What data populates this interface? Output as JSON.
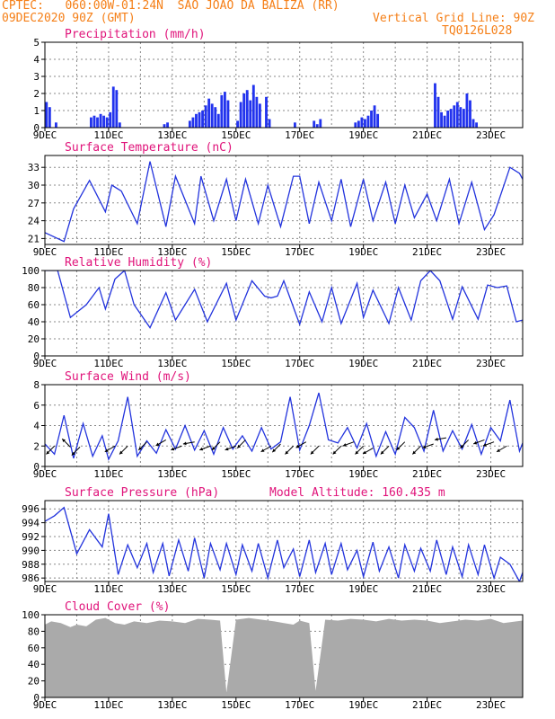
{
  "header": {
    "line1_left": "CPTEC:   060:00W-01:24N  SAO JOAO DA BALIZA (RR)",
    "line2_left": "09DEC2020 90Z (GMT)",
    "line2_right": "Vertical Grid Line: 90Z",
    "line3_right": "TQ0126L028"
  },
  "colors": {
    "header_text": "#f57f17",
    "panel_title": "#e0137a",
    "series_line": "#2233dd",
    "precip_bar": "#2233ee",
    "cloud_fill": "#aaaaaa",
    "grid": "#888888"
  },
  "x_axis": {
    "start_day": 9,
    "end_day": 24,
    "tick_labels": [
      "9DEC",
      "11DEC",
      "13DEC",
      "15DEC",
      "17DEC",
      "19DEC",
      "21DEC",
      "23DEC"
    ]
  },
  "chart_data": [
    {
      "type": "bar",
      "title": "Precipitation (mm/h)",
      "ylim": [
        0,
        5
      ],
      "yticks": [
        0,
        1,
        2,
        3,
        4,
        5
      ],
      "grid": true,
      "x_day": [
        9.05,
        9.15,
        9.35,
        10.45,
        10.55,
        10.65,
        10.75,
        10.85,
        10.95,
        11.05,
        11.15,
        11.25,
        11.35,
        12.75,
        12.85,
        13.55,
        13.65,
        13.75,
        13.85,
        13.95,
        14.05,
        14.15,
        14.25,
        14.35,
        14.45,
        14.55,
        14.65,
        14.75,
        15.05,
        15.15,
        15.25,
        15.35,
        15.45,
        15.55,
        15.65,
        15.75,
        15.95,
        16.05,
        16.85,
        17.45,
        17.55,
        17.65,
        18.75,
        18.85,
        18.95,
        19.05,
        19.15,
        19.25,
        19.35,
        19.45,
        21.25,
        21.35,
        21.45,
        21.55,
        21.65,
        21.75,
        21.85,
        21.95,
        22.05,
        22.15,
        22.25,
        22.35,
        22.45,
        22.55
      ],
      "values": [
        1.5,
        1.2,
        0.3,
        0.6,
        0.7,
        0.6,
        0.8,
        0.7,
        0.6,
        0.9,
        2.4,
        2.2,
        0.3,
        0.2,
        0.3,
        0.4,
        0.6,
        0.8,
        0.9,
        1.0,
        1.3,
        1.7,
        1.4,
        1.2,
        0.8,
        1.9,
        2.1,
        1.6,
        0.4,
        1.5,
        2.0,
        2.2,
        1.6,
        2.5,
        1.8,
        1.4,
        1.8,
        0.5,
        0.3,
        0.4,
        0.2,
        0.5,
        0.3,
        0.4,
        0.6,
        0.5,
        0.7,
        1.0,
        1.3,
        0.8,
        2.6,
        1.8,
        0.9,
        0.7,
        1.0,
        1.1,
        1.3,
        1.5,
        1.2,
        1.1,
        2.0,
        1.6,
        0.5,
        0.3
      ]
    },
    {
      "type": "line",
      "title": "Surface Temperature (nC)",
      "ylim": [
        20,
        35
      ],
      "yticks": [
        21,
        24,
        27,
        30,
        33
      ],
      "grid": true,
      "x_day": [
        9.0,
        9.6,
        9.9,
        10.4,
        10.9,
        11.1,
        11.4,
        11.9,
        12.3,
        12.8,
        13.1,
        13.7,
        13.9,
        14.3,
        14.7,
        15.0,
        15.3,
        15.7,
        16.0,
        16.4,
        16.8,
        17.0,
        17.3,
        17.6,
        18.0,
        18.3,
        18.6,
        19.0,
        19.3,
        19.7,
        20.0,
        20.3,
        20.6,
        21.0,
        21.3,
        21.7,
        22.0,
        22.4,
        22.8,
        23.1,
        23.6,
        23.9,
        24.0
      ],
      "values": [
        22.0,
        20.5,
        26.0,
        30.8,
        25.5,
        30.0,
        29.0,
        23.5,
        34.0,
        23.0,
        31.5,
        23.5,
        31.5,
        24.0,
        31.0,
        24.0,
        31.0,
        23.5,
        30.0,
        23.0,
        31.5,
        31.5,
        23.5,
        30.5,
        24.0,
        31.0,
        23.0,
        31.0,
        24.0,
        30.5,
        23.5,
        30.0,
        24.5,
        28.5,
        24.0,
        31.0,
        23.5,
        30.5,
        22.5,
        25.0,
        33.0,
        32.0,
        31.0
      ]
    },
    {
      "type": "line",
      "title": "Relative Humidity (%)",
      "ylim": [
        0,
        100
      ],
      "yticks": [
        0,
        20,
        40,
        60,
        80,
        100
      ],
      "grid": true,
      "x_day": [
        9.0,
        9.4,
        9.8,
        10.3,
        10.7,
        10.9,
        11.2,
        11.5,
        11.8,
        12.3,
        12.8,
        13.1,
        13.7,
        14.1,
        14.7,
        15.0,
        15.5,
        15.9,
        16.1,
        16.3,
        16.5,
        16.9,
        17.0,
        17.3,
        17.7,
        18.0,
        18.3,
        18.8,
        19.0,
        19.3,
        19.8,
        20.1,
        20.5,
        20.8,
        21.1,
        21.4,
        21.8,
        22.1,
        22.6,
        22.9,
        23.2,
        23.5,
        23.8,
        24.0
      ],
      "values": [
        100,
        100,
        45,
        60,
        80,
        55,
        90,
        100,
        60,
        33,
        74,
        42,
        78,
        40,
        85,
        42,
        88,
        70,
        68,
        70,
        88,
        47,
        37,
        75,
        40,
        80,
        38,
        85,
        45,
        77,
        38,
        80,
        42,
        88,
        100,
        88,
        43,
        81,
        43,
        83,
        80,
        82,
        40,
        42
      ]
    },
    {
      "type": "line",
      "title": "Surface Wind (m/s)",
      "ylim": [
        0,
        8
      ],
      "yticks": [
        0,
        2,
        4,
        6,
        8
      ],
      "grid": true,
      "x_day": [
        9.0,
        9.3,
        9.6,
        9.9,
        10.2,
        10.5,
        10.8,
        11.0,
        11.3,
        11.6,
        11.9,
        12.2,
        12.5,
        12.8,
        13.1,
        13.4,
        13.7,
        14.0,
        14.3,
        14.6,
        14.9,
        15.2,
        15.5,
        15.8,
        16.1,
        16.4,
        16.7,
        17.0,
        17.3,
        17.6,
        17.9,
        18.2,
        18.5,
        18.8,
        19.1,
        19.4,
        19.7,
        20.0,
        20.3,
        20.6,
        20.9,
        21.2,
        21.5,
        21.8,
        22.1,
        22.4,
        22.7,
        23.0,
        23.3,
        23.6,
        23.9,
        24.0
      ],
      "values": [
        2.2,
        1.2,
        5.0,
        0.8,
        4.2,
        1.0,
        3.0,
        0.7,
        2.5,
        6.8,
        1.0,
        2.5,
        1.3,
        3.6,
        1.7,
        4.0,
        1.6,
        3.5,
        1.2,
        3.8,
        1.7,
        3.0,
        1.5,
        3.8,
        1.7,
        2.4,
        6.8,
        1.6,
        4.0,
        7.2,
        2.6,
        2.3,
        3.8,
        1.8,
        4.2,
        1.0,
        3.4,
        1.2,
        4.8,
        3.8,
        1.5,
        5.5,
        1.5,
        3.5,
        1.7,
        4.1,
        1.2,
        3.8,
        2.5,
        6.5,
        1.5,
        2.3
      ],
      "arrows": [
        [
          9.3,
          225,
          2.0
        ],
        [
          9.8,
          135,
          1.9
        ],
        [
          10.1,
          225,
          1.9
        ],
        [
          11.2,
          210,
          2.0
        ],
        [
          11.6,
          225,
          2.0
        ],
        [
          12.2,
          225,
          2.4
        ],
        [
          12.8,
          210,
          2.6
        ],
        [
          13.3,
          200,
          2.0
        ],
        [
          13.7,
          190,
          2.4
        ],
        [
          14.2,
          200,
          2.0
        ],
        [
          14.5,
          225,
          2.4
        ],
        [
          15.0,
          200,
          2.0
        ],
        [
          15.3,
          225,
          2.6
        ],
        [
          16.1,
          210,
          2.0
        ],
        [
          16.4,
          225,
          2.2
        ],
        [
          16.8,
          225,
          2.0
        ],
        [
          17.2,
          210,
          2.4
        ],
        [
          17.6,
          225,
          2.0
        ],
        [
          18.3,
          225,
          2.0
        ],
        [
          18.7,
          200,
          2.4
        ],
        [
          19.0,
          225,
          2.0
        ],
        [
          19.3,
          210,
          1.8
        ],
        [
          19.8,
          225,
          2.0
        ],
        [
          20.3,
          225,
          2.4
        ],
        [
          20.8,
          225,
          2.0
        ],
        [
          21.2,
          200,
          2.2
        ],
        [
          21.6,
          190,
          2.8
        ],
        [
          22.3,
          225,
          2.6
        ],
        [
          22.8,
          200,
          2.6
        ],
        [
          23.1,
          200,
          2.4
        ],
        [
          23.5,
          210,
          2.0
        ]
      ]
    },
    {
      "type": "line",
      "title": "Surface Pressure (hPa)",
      "subtitle": "Model Altitude: 160.435 m",
      "ylim": [
        985.5,
        997.2
      ],
      "yticks": [
        986,
        988,
        990,
        992,
        994,
        996
      ],
      "grid": true,
      "x_day": [
        9.0,
        9.3,
        9.6,
        10.0,
        10.4,
        10.8,
        11.0,
        11.3,
        11.6,
        11.9,
        12.2,
        12.4,
        12.7,
        12.9,
        13.2,
        13.5,
        13.7,
        14.0,
        14.2,
        14.5,
        14.7,
        15.0,
        15.2,
        15.5,
        15.7,
        16.0,
        16.3,
        16.5,
        16.8,
        17.0,
        17.3,
        17.5,
        17.8,
        18.0,
        18.3,
        18.5,
        18.8,
        19.0,
        19.3,
        19.5,
        19.8,
        20.1,
        20.3,
        20.6,
        20.8,
        21.1,
        21.3,
        21.6,
        21.8,
        22.1,
        22.3,
        22.6,
        22.8,
        23.1,
        23.3,
        23.6,
        23.9,
        24.0
      ],
      "values": [
        994.2,
        995.0,
        996.2,
        989.5,
        993.0,
        990.5,
        995.3,
        986.5,
        990.8,
        987.5,
        991.0,
        986.8,
        991.0,
        986.3,
        991.5,
        987.0,
        991.8,
        986.0,
        991.0,
        987.2,
        991.0,
        986.5,
        990.8,
        987.0,
        991.0,
        986.0,
        991.5,
        987.5,
        990.2,
        986.2,
        991.5,
        986.8,
        991.0,
        986.5,
        991.0,
        987.2,
        990.0,
        986.2,
        991.2,
        987.0,
        990.5,
        986.0,
        990.8,
        987.0,
        990.3,
        987.0,
        991.5,
        986.5,
        990.5,
        986.2,
        990.8,
        986.5,
        990.8,
        986.0,
        989.0,
        988.0,
        985.5,
        986.8
      ]
    },
    {
      "type": "area",
      "title": "Cloud Cover (%)",
      "ylim": [
        0,
        100
      ],
      "yticks": [
        0,
        20,
        40,
        60,
        80,
        100
      ],
      "grid": true,
      "x_day": [
        9.0,
        9.2,
        9.5,
        9.8,
        10.0,
        10.3,
        10.6,
        10.9,
        11.2,
        11.5,
        11.8,
        12.2,
        12.6,
        13.0,
        13.4,
        13.8,
        14.2,
        14.5,
        14.7,
        15.0,
        15.4,
        15.8,
        16.2,
        16.5,
        16.8,
        17.0,
        17.3,
        17.5,
        17.8,
        18.2,
        18.6,
        19.0,
        19.4,
        19.8,
        20.2,
        20.6,
        21.0,
        21.4,
        21.8,
        22.2,
        22.6,
        23.0,
        23.4,
        23.8,
        24.0
      ],
      "values": [
        88,
        92,
        90,
        85,
        88,
        86,
        94,
        96,
        90,
        88,
        92,
        90,
        93,
        92,
        90,
        95,
        94,
        93,
        6,
        94,
        96,
        94,
        92,
        90,
        88,
        93,
        90,
        8,
        94,
        93,
        95,
        94,
        92,
        95,
        93,
        94,
        93,
        90,
        92,
        94,
        93,
        95,
        90,
        92,
        93
      ]
    }
  ]
}
